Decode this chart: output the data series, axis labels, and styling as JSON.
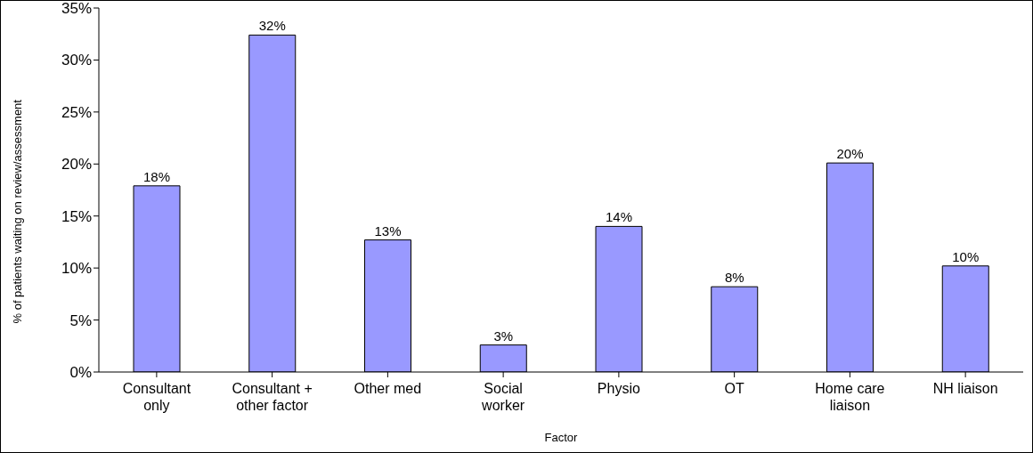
{
  "chart_data": {
    "type": "bar",
    "xlabel": "Factor",
    "ylabel": "% of patients waiting on review/assessment",
    "categories": [
      "Consultant only",
      "Consultant + other factor",
      "Other med",
      "Social worker",
      "Physio",
      "OT",
      "Home care liaison",
      "NH liaison"
    ],
    "values": [
      17.9,
      32.4,
      12.7,
      2.6,
      14.0,
      8.2,
      20.1,
      10.2
    ],
    "value_labels": [
      "18%",
      "32%",
      "13%",
      "3%",
      "14%",
      "8%",
      "20%",
      "10%"
    ],
    "color": "#9999ff",
    "ylim": [
      0,
      35
    ],
    "yticks": [
      {
        "value": 0,
        "label": "0%"
      },
      {
        "value": 5,
        "label": "5%"
      },
      {
        "value": 10,
        "label": "10%"
      },
      {
        "value": 15,
        "label": "15%"
      },
      {
        "value": 20,
        "label": "20%"
      },
      {
        "value": 25,
        "label": "25%"
      },
      {
        "value": 30,
        "label": "30%"
      },
      {
        "value": 35,
        "label": "35%"
      }
    ],
    "grid": false,
    "legend": false
  }
}
